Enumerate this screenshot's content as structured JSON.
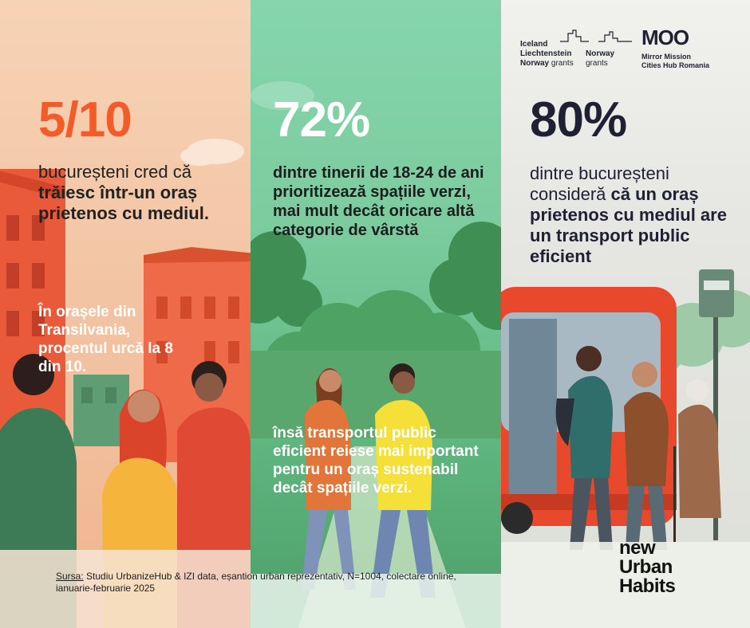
{
  "left": {
    "stat": "5/10",
    "text_normal_1": "bucureșteni cred că ",
    "text_bold_1": "trăiesc într-un oraș prietenos cu mediul.",
    "note": "În orașele din Transilvania, procentul urcă la 8 din 10."
  },
  "middle": {
    "stat": "72%",
    "text": "dintre tinerii de 18-24 de ani prioritizează spațiile verzi, mai mult decât oricare altă categorie de vârstă",
    "note": "însă transportul public eficient reiese mai important pentru un oraș sustenabil decât spațiile verzi."
  },
  "right": {
    "stat": "80%",
    "text_normal_1": "dintre bucureșteni consideră ",
    "text_bold_1": "că un oraș prietenos cu mediul are un transport public eficient"
  },
  "grants_logo": {
    "line1": "Iceland",
    "line2": "Liechtenstein",
    "line3_bold": "Norway",
    "line3_light": "grants",
    "line2b": "Norway",
    "line3b": "grants"
  },
  "mmo_logo": {
    "mark": "MOO",
    "sub1": "Mirror Mission",
    "sub2": "Cities Hub Romania"
  },
  "brand": {
    "line1": "new",
    "line2": "Urban",
    "line3": "Habits"
  },
  "source": {
    "label": "Sursa:",
    "text": " Studiu UrbanizeHub & IZI data, eșantion urban reprezentativ, N=1004, colectare online, ianuarie-februarie 2025"
  },
  "colors": {
    "accent_orange": "#f25c2a",
    "dark_navy": "#1f2033",
    "green": "#7ccc9f",
    "bus_red": "#e8482c"
  }
}
